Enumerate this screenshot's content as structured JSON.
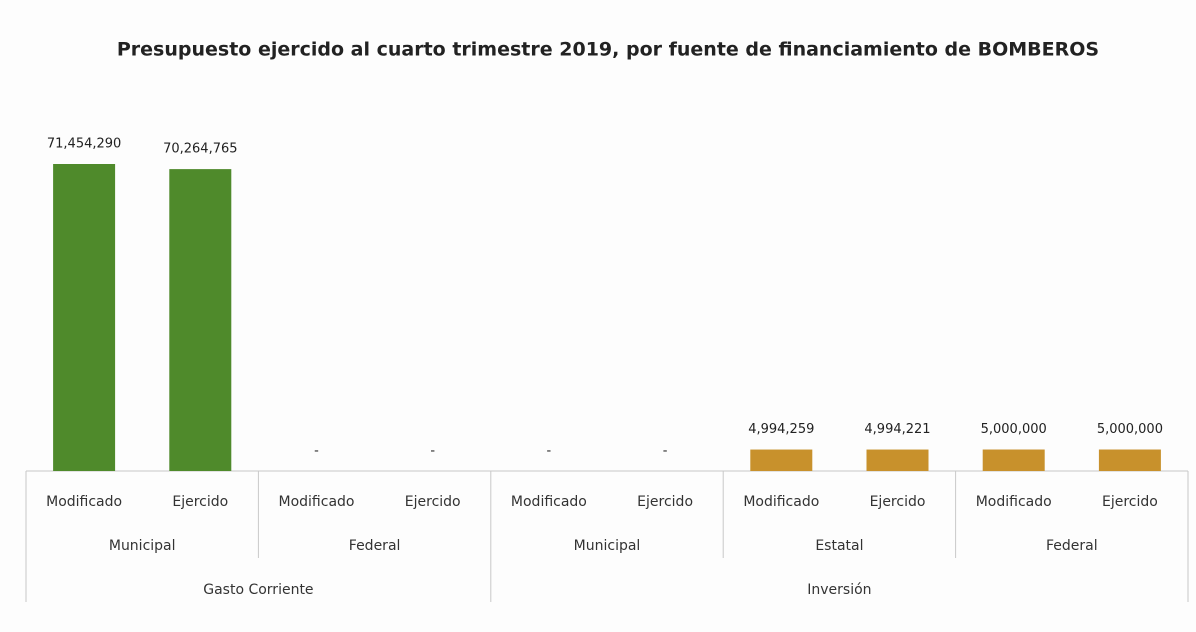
{
  "chart_data": {
    "type": "bar",
    "title": "Presupuesto ejercido al cuarto trimestre 2019, por fuente de financiamiento de BOMBEROS",
    "category_groups": [
      {
        "name": "Gasto Corriente",
        "groups": [
          {
            "name": "Municipal",
            "categories": [
              "Modificado",
              "Ejercido"
            ]
          },
          {
            "name": "Federal",
            "categories": [
              "Modificado",
              "Ejercido"
            ]
          }
        ]
      },
      {
        "name": "Inversión",
        "groups": [
          {
            "name": "Municipal",
            "categories": [
              "Modificado",
              "Ejercido"
            ]
          },
          {
            "name": "Estatal",
            "categories": [
              "Modificado",
              "Ejercido"
            ]
          },
          {
            "name": "Federal",
            "categories": [
              "Modificado",
              "Ejercido"
            ]
          }
        ]
      }
    ],
    "values": [
      71454290,
      70264765,
      0,
      0,
      0,
      0,
      4994259,
      4994221,
      5000000,
      5000000
    ],
    "value_labels": [
      "71,454,290",
      "70,264,765",
      "-",
      "-",
      "-",
      "-",
      "4,994,259",
      "4,994,221",
      "5,000,000",
      "5,000,000"
    ],
    "colors": [
      "#4f8a2b",
      "#4f8a2b",
      "#4f8a2b",
      "#4f8a2b",
      "#c8912c",
      "#c8912c",
      "#c8912c",
      "#c8912c",
      "#c8912c",
      "#c8912c"
    ]
  }
}
